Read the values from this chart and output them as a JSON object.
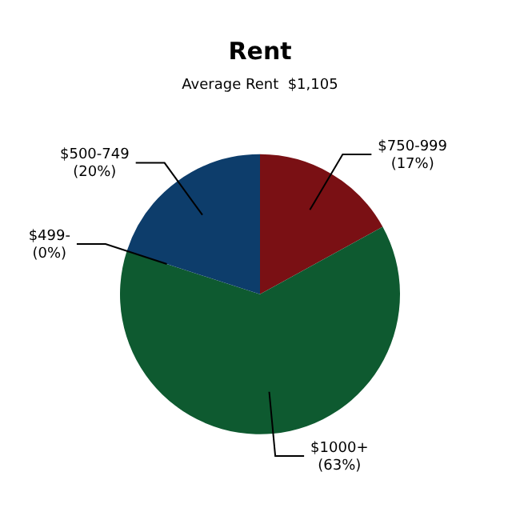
{
  "chart_data": {
    "type": "pie",
    "title": "Rent",
    "subtitle": "Average Rent  $1,105",
    "categories": [
      "$750-999",
      "$1000+",
      "$499-",
      "$500-749"
    ],
    "values": [
      17,
      63,
      0,
      20
    ],
    "colors": [
      "#7a1014",
      "#0e5a30",
      "#c8a020",
      "#0d3d6b"
    ],
    "value_labels": [
      "(17%)",
      "(63%)",
      "(0%)",
      "(20%)"
    ],
    "legend": false
  }
}
